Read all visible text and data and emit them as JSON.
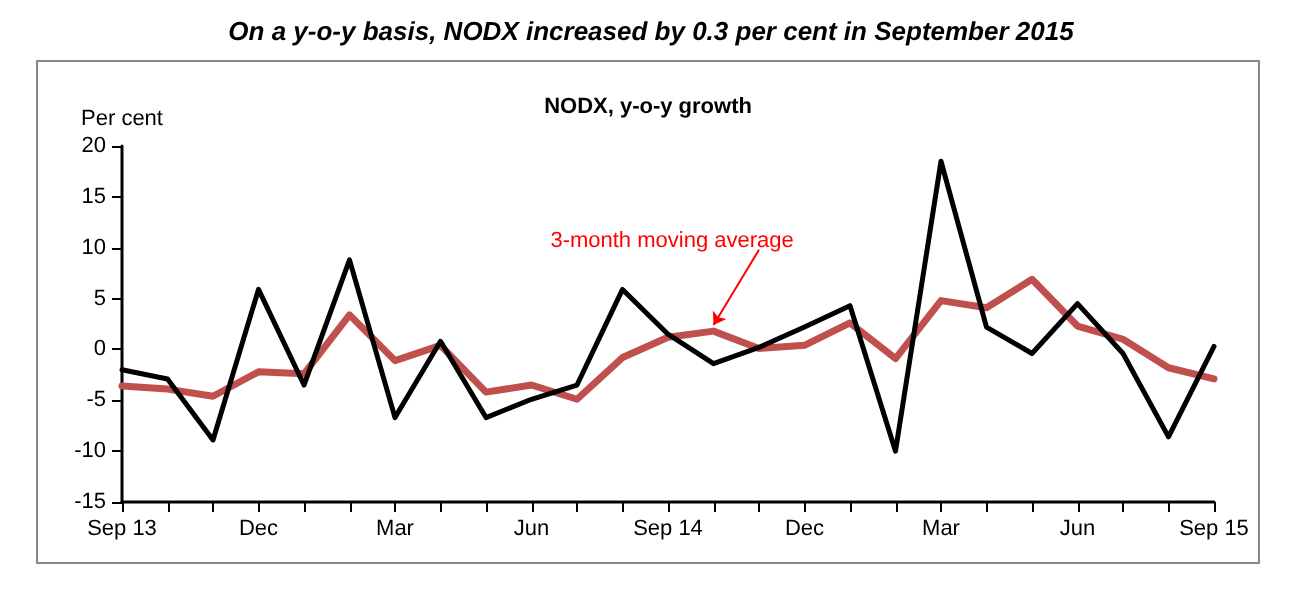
{
  "chart_data": {
    "type": "line",
    "title": "On a y-o-y basis, NODX increased by 0.3 per cent in September 2015",
    "subtitle": "NODX, y-o-y growth",
    "ylabel": "Per cent",
    "categories": [
      "Sep 13",
      null,
      null,
      "Dec",
      null,
      null,
      "Mar",
      null,
      null,
      "Jun",
      null,
      null,
      "Sep 14",
      null,
      null,
      "Dec",
      null,
      null,
      "Mar",
      null,
      null,
      "Jun",
      null,
      null,
      "Sep 15"
    ],
    "series": [
      {
        "color": "#000000",
        "values": [
          -2.0,
          -2.9,
          -8.9,
          5.9,
          -3.5,
          8.8,
          -6.7,
          0.8,
          -6.7,
          -4.9,
          -3.5,
          5.9,
          1.5,
          -1.4,
          0.2,
          2.2,
          4.3,
          -10.0,
          18.5,
          2.2,
          -0.4,
          4.5,
          -0.4,
          -8.6,
          0.3
        ]
      },
      {
        "name": "3-month moving average",
        "color": "#c0504d",
        "values": [
          -3.6,
          -3.9,
          -4.6,
          -2.2,
          -2.4,
          3.4,
          -1.1,
          0.4,
          -4.2,
          -3.5,
          -4.9,
          -0.8,
          1.2,
          1.8,
          0.1,
          0.4,
          2.6,
          -0.9,
          4.8,
          4.1,
          6.9,
          2.3,
          1.0,
          -1.8,
          -2.9
        ]
      }
    ],
    "ylim": [
      -15,
      20
    ],
    "yticks": [
      -15,
      -10,
      -5,
      0,
      5,
      10,
      15,
      20
    ],
    "grid": false,
    "legend": false,
    "marker": "none",
    "line_style": "solid"
  }
}
